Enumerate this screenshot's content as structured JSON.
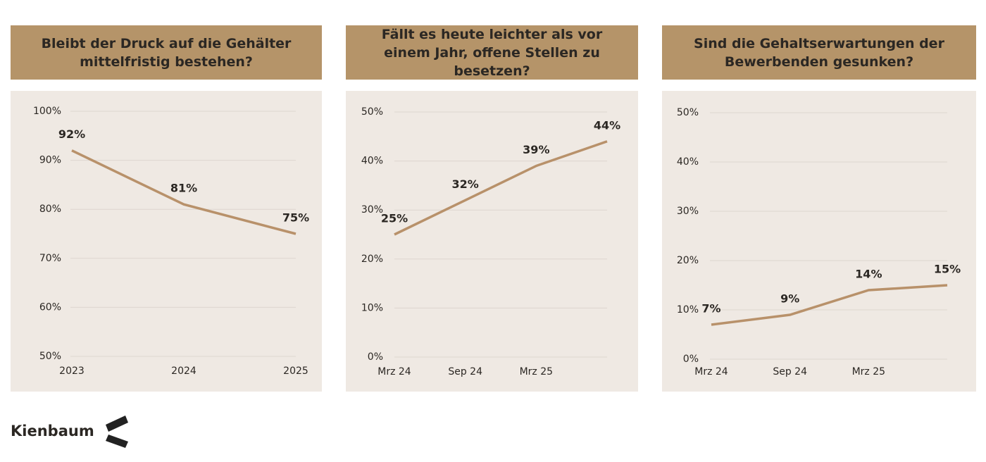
{
  "chart_data": [
    {
      "type": "line",
      "title": "Bleibt der Druck auf die Gehälter mittelfristig bestehen?",
      "categories": [
        "2023",
        "2024",
        "2025"
      ],
      "series": [
        {
          "color": "#b8916a",
          "values": [
            92,
            81,
            75
          ],
          "value_labels": [
            "92%",
            "81%",
            "75%"
          ]
        }
      ],
      "ylim": [
        50,
        100
      ],
      "yticks": [
        {
          "value": 50,
          "label": "50%"
        },
        {
          "value": 60,
          "label": "60%"
        },
        {
          "value": 70,
          "label": "70%"
        },
        {
          "value": 80,
          "label": "80%"
        },
        {
          "value": 90,
          "label": "90%"
        },
        {
          "value": 100,
          "label": "100%"
        }
      ],
      "grid": true
    },
    {
      "type": "line",
      "title": "Fällt es heute leichter als vor einem Jahr, offene Stellen zu besetzen?",
      "categories": [
        "Mrz 24",
        "Sep 24",
        "Mrz 25",
        null
      ],
      "series": [
        {
          "color": "#b8916a",
          "values": [
            25,
            32,
            39,
            44
          ],
          "value_labels": [
            "25%",
            "32%",
            "39%",
            "44%"
          ]
        }
      ],
      "ylim": [
        0,
        50
      ],
      "yticks": [
        {
          "value": 0,
          "label": "0%"
        },
        {
          "value": 10,
          "label": "10%"
        },
        {
          "value": 20,
          "label": "20%"
        },
        {
          "value": 30,
          "label": "30%"
        },
        {
          "value": 40,
          "label": "40%"
        },
        {
          "value": 50,
          "label": "50%"
        }
      ],
      "grid": true
    },
    {
      "type": "line",
      "title": "Sind die Gehaltserwartungen der Bewerbenden gesunken?",
      "categories": [
        "Mrz 24",
        "Sep 24",
        "Mrz 25",
        null
      ],
      "series": [
        {
          "color": "#b8916a",
          "values": [
            7,
            9,
            14,
            15
          ],
          "value_labels": [
            "7%",
            "9%",
            "14%",
            "15%"
          ]
        }
      ],
      "ylim": [
        0,
        50
      ],
      "yticks": [
        {
          "value": 0,
          "label": "0%"
        },
        {
          "value": 10,
          "label": "10%"
        },
        {
          "value": 20,
          "label": "20%"
        },
        {
          "value": 30,
          "label": "30%"
        },
        {
          "value": 40,
          "label": "40%"
        },
        {
          "value": 50,
          "label": "50%"
        }
      ],
      "grid": true
    }
  ],
  "brand": "Kienbaum"
}
